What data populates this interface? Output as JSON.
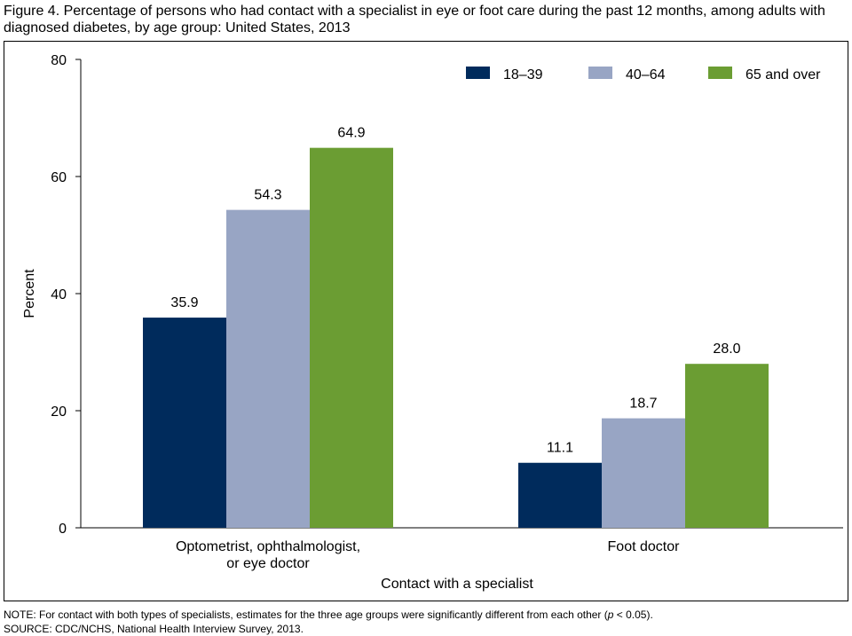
{
  "title": "Figure 4. Percentage of persons who had contact with a specialist in eye or foot care during the past 12 months, among adults with diagnosed diabetes, by age group: United States, 2013",
  "note_prefix": "NOTE: For contact with both types of specialists, estimates for the three age groups were significantly different from each other (",
  "note_p": "p",
  "note_suffix": " < 0.05).",
  "source": "SOURCE: CDC/NCHS, National Health Interview Survey, 2013.",
  "chart_data": {
    "type": "bar",
    "categories": [
      "Optometrist, ophthalmologist, or eye doctor",
      "Foot doctor"
    ],
    "category_lines": [
      [
        "Optometrist, ophthalmologist,",
        "or eye doctor"
      ],
      [
        "Foot doctor"
      ]
    ],
    "series": [
      {
        "name": "18–39",
        "color": "#002b5c",
        "values": [
          35.9,
          11.1
        ]
      },
      {
        "name": "40–64",
        "color": "#98a5c4",
        "values": [
          54.3,
          18.7
        ]
      },
      {
        "name": "65 and over",
        "color": "#6b9d33",
        "values": [
          64.9,
          28.0
        ]
      }
    ],
    "xlabel": "Contact with a specialist",
    "ylabel": "Percent",
    "ylim": [
      0,
      80
    ],
    "yticks": [
      0,
      20,
      40,
      60,
      80
    ],
    "grid": false,
    "legend": "top-right"
  }
}
